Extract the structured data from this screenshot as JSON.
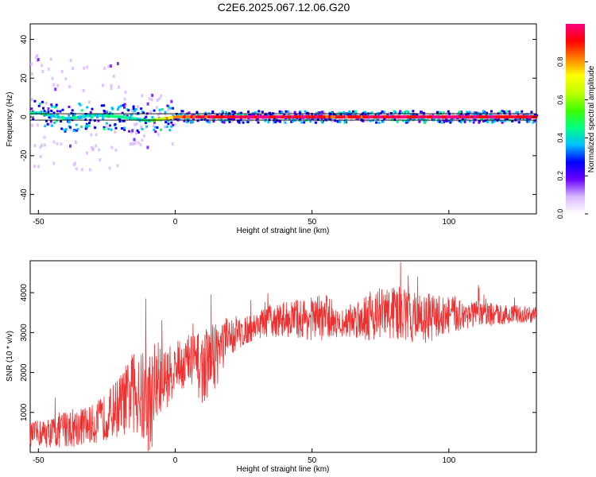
{
  "title": "C2E6.2025.067.12.06.G20",
  "chart_data": [
    {
      "type": "heatmap",
      "xlabel": "Height of straight line (km)",
      "ylabel": "Frequency (Hz)",
      "xlim": [
        -53,
        132
      ],
      "ylim": [
        -50,
        48
      ],
      "xticks": [
        -50,
        0,
        50,
        100
      ],
      "yticks": [
        -40,
        -20,
        0,
        20,
        40
      ],
      "colorbar": {
        "label": "Normalized spectral amplitude",
        "range": [
          0,
          1
        ],
        "ticks": [
          "0.0",
          "0.2",
          "0.4",
          "0.6",
          "0.8"
        ],
        "colors": [
          "#ffffff",
          "#d8b8ff",
          "#6a00ff",
          "#0000ff",
          "#00c0ff",
          "#00ff80",
          "#40ff00",
          "#c0ff00",
          "#ffff00",
          "#ff8000",
          "#ff0000",
          "#ff0080"
        ]
      },
      "ridge": [
        {
          "x": -50,
          "freq": 2,
          "amp": 0.45
        },
        {
          "x": -40,
          "freq": -1,
          "amp": 0.4
        },
        {
          "x": -30,
          "freq": 1,
          "amp": 0.4
        },
        {
          "x": -20,
          "freq": 0,
          "amp": 0.45
        },
        {
          "x": -10,
          "freq": -2,
          "amp": 0.45
        },
        {
          "x": 0,
          "freq": 0,
          "amp": 0.85
        },
        {
          "x": 20,
          "freq": 0,
          "amp": 0.95
        },
        {
          "x": 40,
          "freq": 0,
          "amp": 0.95
        },
        {
          "x": 60,
          "freq": 0,
          "amp": 0.9
        },
        {
          "x": 80,
          "freq": 0,
          "amp": 0.95
        },
        {
          "x": 100,
          "freq": 0,
          "amp": 0.95
        },
        {
          "x": 132,
          "freq": 0,
          "amp": 0.95
        }
      ]
    },
    {
      "type": "line",
      "xlabel": "Height of straight line (km)",
      "ylabel": "SNR (10 * v/v)",
      "xlim": [
        -53,
        132
      ],
      "ylim": [
        0,
        4800
      ],
      "xticks": [
        -50,
        0,
        50,
        100
      ],
      "yticks": [
        1000,
        2000,
        3000,
        4000
      ],
      "color": "#ee3030",
      "series": [
        {
          "x": [
            -53,
            -45,
            -40,
            -35,
            -30,
            -25,
            -20,
            -15,
            -10,
            -5,
            0,
            5,
            10,
            15,
            20,
            25,
            30,
            40,
            50,
            55,
            60,
            70,
            80,
            90,
            100,
            110,
            120,
            132
          ],
          "mean": [
            450,
            500,
            600,
            650,
            700,
            900,
            1200,
            1500,
            1200,
            1750,
            2100,
            2300,
            2100,
            2500,
            2900,
            3000,
            3200,
            3350,
            3350,
            3400,
            3200,
            3450,
            3500,
            3350,
            3450,
            3450,
            3450,
            3450
          ],
          "spread": [
            300,
            400,
            500,
            500,
            500,
            600,
            800,
            1000,
            1400,
            900,
            600,
            700,
            900,
            900,
            500,
            350,
            350,
            450,
            550,
            600,
            300,
            650,
            700,
            650,
            500,
            350,
            250,
            200
          ]
        }
      ]
    }
  ]
}
